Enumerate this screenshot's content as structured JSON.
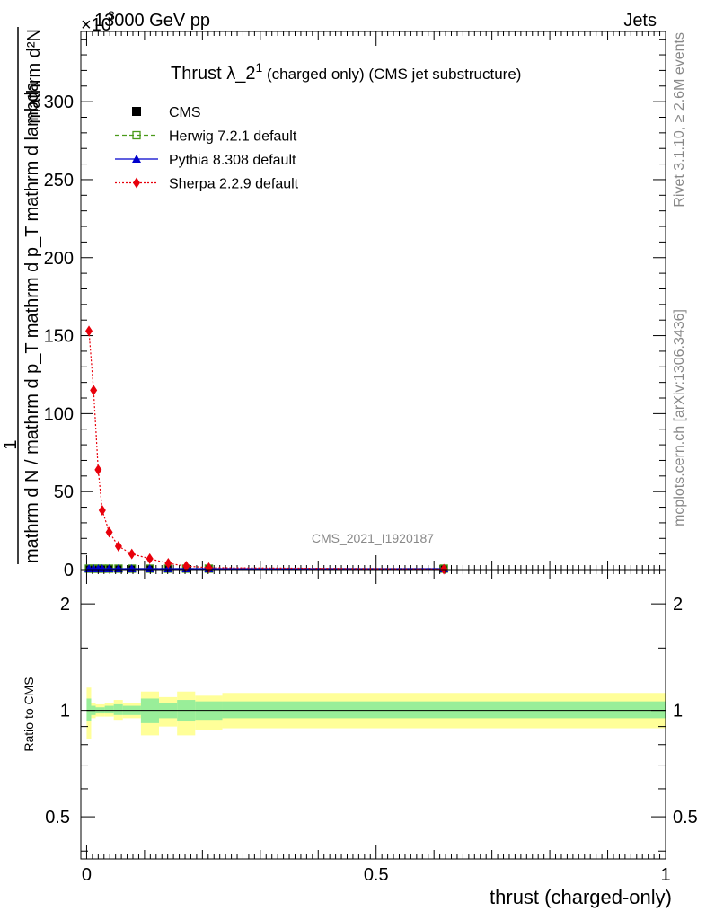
{
  "header": {
    "energy": "13000 GeV pp",
    "category": "Jets",
    "exponent": "×10",
    "exponent_power": "3"
  },
  "side_text": {
    "rivet": "Rivet 3.1.10, ≥ 2.6M events",
    "mcplots": "mcplots.cern.ch [arXiv:1306.3436]"
  },
  "analysis_id": "CMS_2021_I1920187",
  "chart_data": [
    {
      "type": "line",
      "title_main": "Thrust λ_2",
      "title_sup": "1",
      "title_rest": " (charged only) (CMS jet substructure)",
      "ylabel_num": "1",
      "ylabel_den": "mathrm d N / mathrm d p_T mathrm d p_T mathrm d lambda",
      "ylabel_top": "mathrm d²N",
      "yscale": 1000,
      "ylim": [
        0,
        345
      ],
      "xlim": [
        -0.01,
        1.0
      ],
      "yticks": [
        0,
        50,
        100,
        150,
        200,
        250,
        300
      ],
      "legend_position": "top-left",
      "legend": [
        {
          "name": "CMS",
          "color": "#000000",
          "marker": "square-filled",
          "line": "none"
        },
        {
          "name": "Herwig 7.2.1 default",
          "color": "#4a9a1a",
          "marker": "square-open",
          "line": "dashed"
        },
        {
          "name": "Pythia 8.308 default",
          "color": "#0000cc",
          "marker": "triangle",
          "line": "solid"
        },
        {
          "name": "Sherpa 2.2.9 default",
          "color": "#e8000b",
          "marker": "diamond",
          "line": "dotted"
        }
      ],
      "bins": [
        0,
        0.0078,
        0.0156,
        0.0234,
        0.0313,
        0.0469,
        0.0625,
        0.0938,
        0.125,
        0.1563,
        0.1875,
        0.2344,
        1.0
      ],
      "series": [
        {
          "name": "CMS",
          "x": [
            0.004,
            0.012,
            0.02,
            0.027,
            0.039,
            0.055,
            0.078,
            0.109,
            0.141,
            0.172,
            0.211,
            0.617
          ],
          "values": [
            0.6,
            0.6,
            0.6,
            0.6,
            0.6,
            0.6,
            0.6,
            0.6,
            0.6,
            0.6,
            0.6,
            0.6
          ]
        },
        {
          "name": "Herwig 7.2.1 default",
          "x": [
            0.004,
            0.012,
            0.02,
            0.027,
            0.039,
            0.055,
            0.078,
            0.109,
            0.141,
            0.172,
            0.211,
            0.617
          ],
          "values": [
            0.6,
            0.6,
            0.6,
            0.6,
            0.6,
            0.6,
            0.6,
            0.6,
            0.6,
            0.6,
            0.6,
            0.6
          ]
        },
        {
          "name": "Pythia 8.308 default",
          "x": [
            0.004,
            0.012,
            0.02,
            0.027,
            0.039,
            0.055,
            0.078,
            0.109,
            0.141,
            0.172,
            0.211,
            0.617
          ],
          "values": [
            0.6,
            0.6,
            0.6,
            0.6,
            0.6,
            0.6,
            0.6,
            0.6,
            0.6,
            0.6,
            0.6,
            0.6
          ]
        },
        {
          "name": "Sherpa 2.2.9 default",
          "x": [
            0.004,
            0.012,
            0.02,
            0.027,
            0.039,
            0.055,
            0.078,
            0.109,
            0.141,
            0.172,
            0.211,
            0.617
          ],
          "values": [
            153,
            115,
            64,
            38,
            24,
            15,
            10,
            7,
            4,
            2.2,
            1.2,
            0.3
          ]
        }
      ]
    },
    {
      "type": "area",
      "ylabel": "Ratio to CMS",
      "xlabel": "thrust (charged-only)",
      "xlim": [
        -0.01,
        1.0
      ],
      "xticks": [
        0,
        0.5,
        1
      ],
      "xtick_labels": [
        "0",
        "0.5",
        "1"
      ],
      "yscale": "log",
      "ylim": [
        0.38,
        2.5
      ],
      "yticks": [
        0.5,
        1,
        2
      ],
      "ytick_labels": [
        "0.5",
        "1",
        "2"
      ],
      "reference": 1,
      "bands": [
        {
          "x0": 0,
          "x1": 0.0078,
          "inner": [
            0.93,
            1.08
          ],
          "outer": [
            0.83,
            1.16
          ]
        },
        {
          "x0": 0.0078,
          "x1": 0.0156,
          "inner": [
            0.97,
            1.03
          ],
          "outer": [
            0.95,
            1.05
          ]
        },
        {
          "x0": 0.0156,
          "x1": 0.0234,
          "inner": [
            0.98,
            1.02
          ],
          "outer": [
            0.96,
            1.04
          ]
        },
        {
          "x0": 0.0234,
          "x1": 0.0313,
          "inner": [
            0.98,
            1.02
          ],
          "outer": [
            0.96,
            1.04
          ]
        },
        {
          "x0": 0.0313,
          "x1": 0.0469,
          "inner": [
            0.98,
            1.03
          ],
          "outer": [
            0.96,
            1.05
          ]
        },
        {
          "x0": 0.0469,
          "x1": 0.0625,
          "inner": [
            0.97,
            1.04
          ],
          "outer": [
            0.94,
            1.07
          ]
        },
        {
          "x0": 0.0625,
          "x1": 0.0938,
          "inner": [
            0.97,
            1.03
          ],
          "outer": [
            0.95,
            1.05
          ]
        },
        {
          "x0": 0.0938,
          "x1": 0.125,
          "inner": [
            0.92,
            1.08
          ],
          "outer": [
            0.85,
            1.13
          ]
        },
        {
          "x0": 0.125,
          "x1": 0.1563,
          "inner": [
            0.95,
            1.05
          ],
          "outer": [
            0.9,
            1.09
          ]
        },
        {
          "x0": 0.1563,
          "x1": 0.1875,
          "inner": [
            0.93,
            1.07
          ],
          "outer": [
            0.85,
            1.13
          ]
        },
        {
          "x0": 0.1875,
          "x1": 0.2344,
          "inner": [
            0.94,
            1.06
          ],
          "outer": [
            0.88,
            1.1
          ]
        },
        {
          "x0": 0.2344,
          "x1": 1.0,
          "inner": [
            0.95,
            1.06
          ],
          "outer": [
            0.89,
            1.12
          ]
        }
      ]
    }
  ]
}
